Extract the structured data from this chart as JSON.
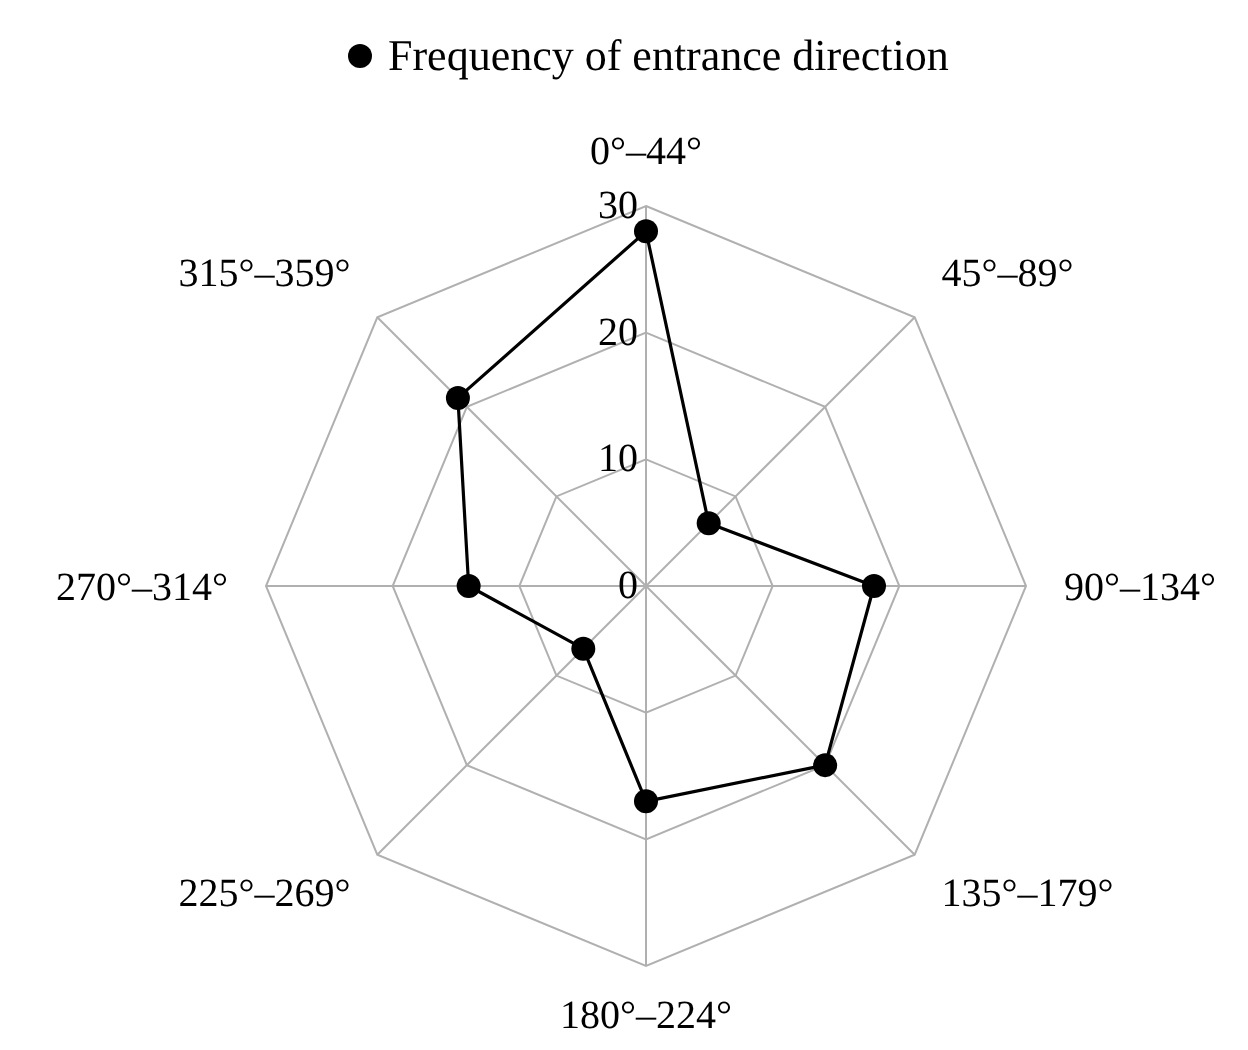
{
  "chart_data": {
    "type": "radar",
    "categories": [
      "0°–44°",
      "45°–89°",
      "90°–134°",
      "135°–179°",
      "180°–224°",
      "225°–269°",
      "270°–314°",
      "315°–359°"
    ],
    "series": [
      {
        "name": "Frequency of entrance direction",
        "color": "#000000",
        "values": [
          28,
          7,
          18,
          20,
          17,
          7,
          14,
          21
        ]
      }
    ],
    "ylim": [
      0,
      30
    ],
    "yticks": [
      0,
      10,
      20,
      30
    ],
    "grid": true,
    "legend": "top",
    "marker": "circle"
  }
}
